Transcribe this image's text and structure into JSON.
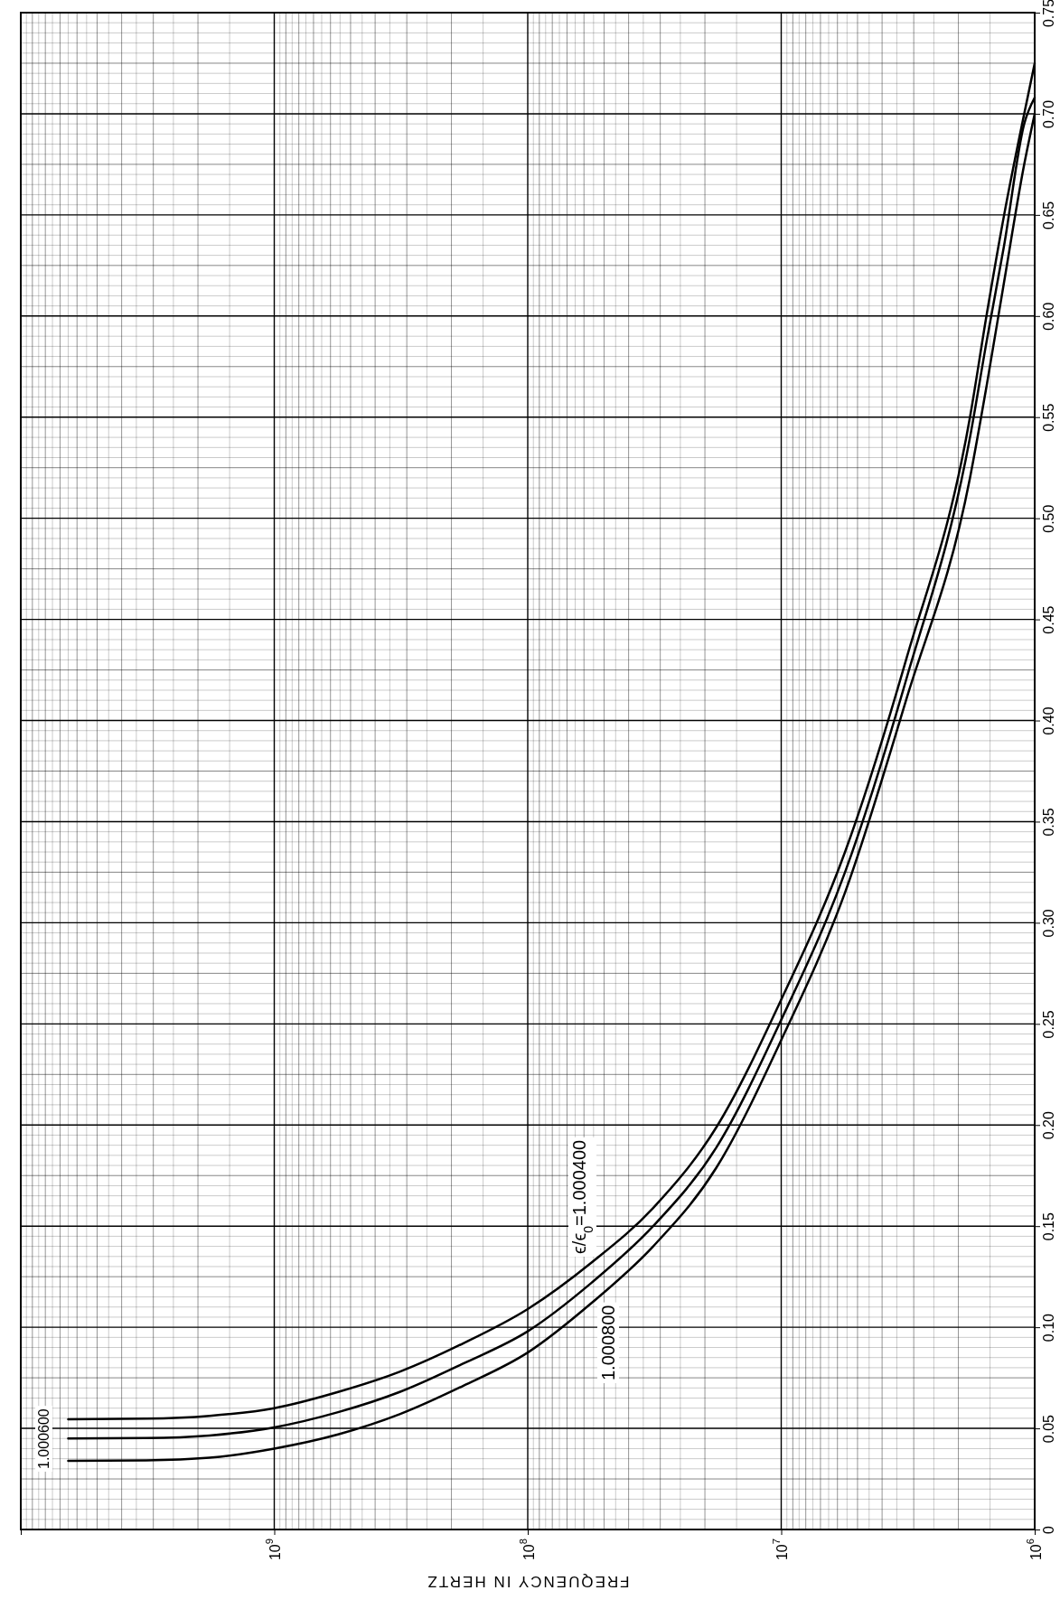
{
  "chart_data": {
    "type": "line",
    "xlabel": "FREQUENCY IN HERTZ",
    "log": "x",
    "grid": true,
    "legend": false,
    "marker": "none",
    "line_style": "solid",
    "xlim": [
      10000000000,
      1000000
    ],
    "ylim": [
      0,
      0.75
    ],
    "xticks": [
      {
        "value": 10000000000,
        "label": null
      },
      {
        "value": 1000000000,
        "label": "10$^{9}$"
      },
      {
        "value": 100000000,
        "label": "10$^{8}$"
      },
      {
        "value": 10000000,
        "label": "10$^{7}$"
      },
      {
        "value": 1000000,
        "label": "10$^{6}$"
      }
    ],
    "yticks": [
      0,
      {
        "value": 0.05,
        "label": "0.05"
      },
      {
        "value": 0.1,
        "label": "0.10"
      },
      {
        "value": 0.15,
        "label": "0.15"
      },
      {
        "value": 0.2,
        "label": "0.20"
      },
      {
        "value": 0.25,
        "label": "0.25"
      },
      {
        "value": 0.3,
        "label": "0.30"
      },
      {
        "value": 0.35,
        "label": "0.35"
      },
      {
        "value": 0.4,
        "label": "0.40"
      },
      {
        "value": 0.45,
        "label": "0.45"
      },
      {
        "value": 0.5,
        "label": "0.50"
      },
      {
        "value": 0.55,
        "label": "0.55"
      },
      {
        "value": 0.6,
        "label": "0.60"
      },
      {
        "value": 0.65,
        "label": "0.65"
      },
      {
        "value": 0.7,
        "label": "0.70"
      },
      {
        "value": 0.75,
        "label": "0.75"
      }
    ],
    "series": [
      {
        "name": "ϵ/ϵ$_{0}$=1.000400",
        "color": "#000000",
        "x": [
          6500000000,
          3200000000,
          1800000000,
          1000000000,
          560000000,
          320000000,
          180000000,
          100000000,
          56000000,
          32000000,
          18000000,
          10000000,
          5600000,
          3200000,
          1800000,
          1550000,
          1320000,
          1100000,
          1000000
        ],
        "values": [
          0.0545,
          0.0548,
          0.0562,
          0.06,
          0.068,
          0.078,
          0.092,
          0.109,
          0.132,
          0.159,
          0.199,
          0.262,
          0.335,
          0.431,
          0.55,
          0.6,
          0.65,
          0.7,
          0.725
        ]
      },
      {
        "name": "1.000600",
        "color": "#000000",
        "x": [
          6500000000,
          3200000000,
          1800000000,
          1000000000,
          560000000,
          320000000,
          180000000,
          100000000,
          56000000,
          32000000,
          18000000,
          10000000,
          5600000,
          3200000,
          1800000,
          1550000,
          1320000,
          1100000,
          1000000
        ],
        "values": [
          0.045,
          0.0452,
          0.0465,
          0.0505,
          0.058,
          0.068,
          0.082,
          0.098,
          0.122,
          0.15,
          0.189,
          0.252,
          0.325,
          0.421,
          0.54,
          0.587,
          0.635,
          0.695,
          0.708
        ]
      },
      {
        "name": "1.000800",
        "color": "#000000",
        "x": [
          6500000000,
          3200000000,
          1800000000,
          1000000000,
          560000000,
          320000000,
          180000000,
          100000000,
          56000000,
          32000000,
          18000000,
          10000000,
          5600000,
          3200000,
          1800000,
          1550000,
          1320000,
          1100000,
          1000000
        ],
        "values": [
          0.034,
          0.0342,
          0.0355,
          0.04,
          0.047,
          0.057,
          0.071,
          0.0875,
          0.112,
          0.14,
          0.179,
          0.242,
          0.315,
          0.411,
          0.52,
          0.565,
          0.617,
          0.675,
          0.7
        ]
      }
    ]
  }
}
